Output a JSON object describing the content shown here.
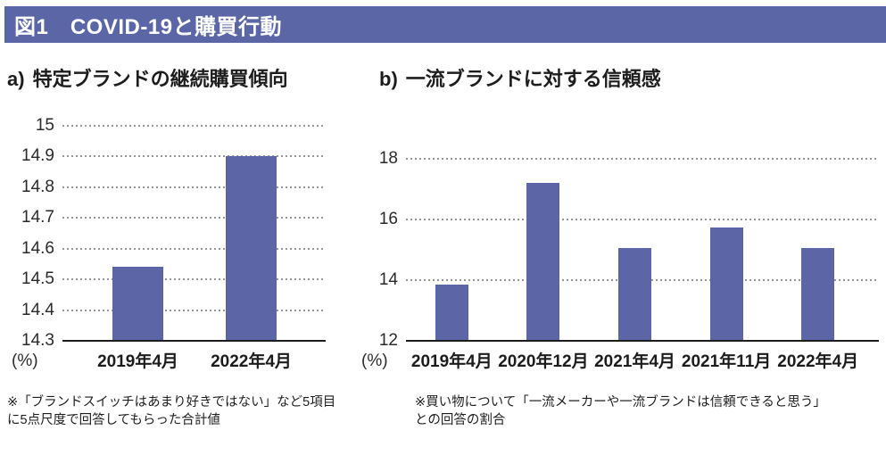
{
  "colors": {
    "accent_bar": "#5c66a6",
    "header_bg": "#5b66a7",
    "grid_dots": "#969696",
    "axis_line": "#1d1d1d",
    "header_text": "#ffffff"
  },
  "header": {
    "title": "図1　COVID-19と購買行動"
  },
  "chart_data": [
    {
      "id": "a",
      "type": "bar",
      "title_prefix": "a)",
      "title": "特定ブランドの継続購買傾向",
      "unit": "(%)",
      "categories": [
        "2019年4月",
        "2022年4月"
      ],
      "values": [
        14.54,
        14.9
      ],
      "ylim": [
        14.3,
        15
      ],
      "yticks": [
        15,
        14.9,
        14.8,
        14.7,
        14.6,
        14.5,
        14.4,
        14.3
      ],
      "grid": "dotted-horizontal",
      "legend": "none",
      "bar_color": "#5c66a6",
      "footnote_lines": [
        "※「ブランドスイッチはあまり好きではない」など5項目",
        "に5点尺度で回答してもらった合計値"
      ]
    },
    {
      "id": "b",
      "type": "bar",
      "title_prefix": "b)",
      "title": "一流ブランドに対する信頼感",
      "unit": "(%)",
      "categories": [
        "2019年4月",
        "2020年12月",
        "2021年4月",
        "2021年11月",
        "2022年4月"
      ],
      "values": [
        13.85,
        17.2,
        15.05,
        15.75,
        15.05
      ],
      "ylim": [
        12,
        18
      ],
      "yticks": [
        18,
        16,
        14,
        12
      ],
      "grid": "dotted-horizontal",
      "legend": "none",
      "bar_color": "#5c66a6",
      "footnote_lines": [
        "※買い物について「一流メーカーや一流ブランドは信頼できると思う」",
        "との回答の割合"
      ]
    }
  ]
}
